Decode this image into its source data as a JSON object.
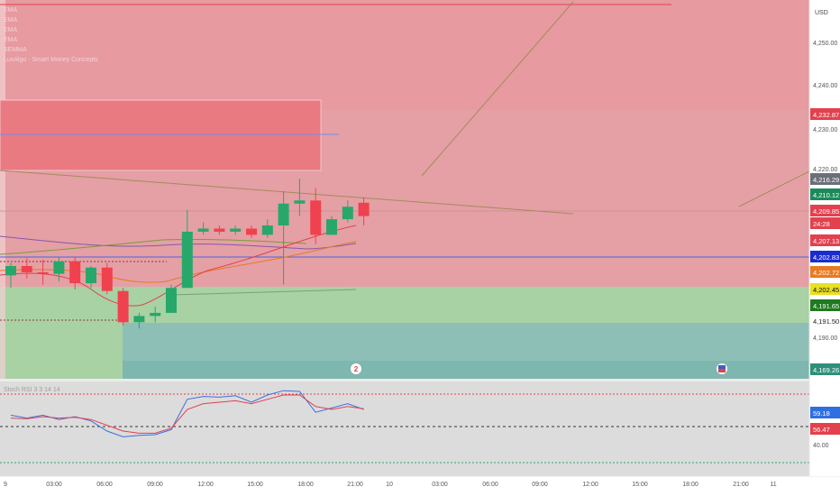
{
  "currency": "USD",
  "legend": [
    "EMA",
    "EMA",
    "EMA",
    "EMA",
    "SEMMA",
    "LuxAlgo - Smart Money Concepts"
  ],
  "price_axis": {
    "ticks": [
      "4,250.00",
      "4,240.00",
      "4,230.00",
      "4,220.00",
      "4,190.00"
    ],
    "badges": [
      {
        "text": "4,232.87",
        "bg": "#e2414e",
        "fg": "#ffffff"
      },
      {
        "text": "4,216.29",
        "bg": "#6b6f78",
        "fg": "#ffffff"
      },
      {
        "text": "4,210.12",
        "bg": "#1c8a5a",
        "fg": "#ffffff"
      },
      {
        "text": "4,209.85",
        "bg": "#e2414e",
        "fg": "#ffffff"
      },
      {
        "text": "24:28",
        "bg": "#e2414e",
        "fg": "#ffffff"
      },
      {
        "text": "4,207.13",
        "bg": "#e2414e",
        "fg": "#ffffff"
      },
      {
        "text": "4,202.83",
        "bg": "#1a2bd0",
        "fg": "#ffffff"
      },
      {
        "text": "4,202.72",
        "bg": "#e87a22",
        "fg": "#ffffff"
      },
      {
        "text": "4,202.45",
        "bg": "#e8e021",
        "fg": "#111111"
      },
      {
        "text": "4,191.65",
        "bg": "#1f7a1f",
        "fg": "#ffffff"
      },
      {
        "text": "4,191.50",
        "bg": "#ffffff",
        "fg": "#222222"
      },
      {
        "text": "4,169.26",
        "bg": "#2f8f7a",
        "fg": "#ffffff"
      }
    ]
  },
  "osc_axis": {
    "badges": [
      {
        "text": "59.18",
        "bg": "#2f6fe0",
        "fg": "#ffffff"
      },
      {
        "text": "56.47",
        "bg": "#e2414e",
        "fg": "#ffffff"
      }
    ],
    "ticks": [
      "40.00"
    ]
  },
  "osc_title": "Stoch RSI 3 3 14 14",
  "time_axis": [
    "9",
    "03:00",
    "06:00",
    "09:00",
    "12:00",
    "15:00",
    "18:00",
    "21:00",
    "10",
    "03:00",
    "06:00",
    "09:00",
    "12:00",
    "15:00",
    "18:00",
    "21:00",
    "11"
  ],
  "colors": {
    "bull": "#27a86a",
    "bear": "#f0414e",
    "supply_zone": "#e4a0a5",
    "demand_zone": "#a8d1a4",
    "discount_zone": "#8dbfb7",
    "ob_box": "#ea7a82",
    "osc_bg": "#dcdcdc",
    "k_line": "#3d6fe0",
    "d_line": "#e2414e"
  },
  "chart_data": {
    "type": "candlestick",
    "series_ohlc": [
      [
        4193.0,
        4197.0,
        4189.0,
        4196.0
      ],
      [
        4196.0,
        4198.5,
        4192.0,
        4194.0
      ],
      [
        4194.0,
        4198.0,
        4190.0,
        4193.5
      ],
      [
        4193.5,
        4199.0,
        4191.0,
        4197.5
      ],
      [
        4197.5,
        4199.0,
        4188.5,
        4190.5
      ],
      [
        4190.5,
        4196.0,
        4189.0,
        4195.5
      ],
      [
        4195.5,
        4197.0,
        4187.0,
        4188.0
      ],
      [
        4188.0,
        4189.0,
        4177.0,
        4178.0
      ],
      [
        4178.0,
        4181.0,
        4176.0,
        4180.0
      ],
      [
        4180.0,
        4183.0,
        4178.0,
        4181.0
      ],
      [
        4181.0,
        4190.0,
        4181.0,
        4189.0
      ],
      [
        4189.0,
        4214.0,
        4189.0,
        4207.0
      ],
      [
        4207.0,
        4210.0,
        4206.0,
        4208.0
      ],
      [
        4208.0,
        4209.0,
        4206.0,
        4207.0
      ],
      [
        4207.0,
        4209.0,
        4206.0,
        4208.0
      ],
      [
        4208.0,
        4209.0,
        4205.0,
        4206.0
      ],
      [
        4206.0,
        4211.0,
        4205.0,
        4209.0
      ],
      [
        4209.0,
        4220.0,
        4190.0,
        4216.0
      ],
      [
        4216.0,
        4224.0,
        4212.0,
        4217.0
      ],
      [
        4217.0,
        4221.0,
        4203.0,
        4206.0
      ],
      [
        4206.0,
        4212.0,
        4206.0,
        4211.0
      ],
      [
        4211.0,
        4217.0,
        4210.0,
        4215.0
      ],
      [
        4216.29,
        4218.0,
        4209.0,
        4212.0
      ]
    ],
    "osc_k": [
      62,
      58,
      62,
      56,
      60,
      54,
      40,
      32,
      34,
      35,
      42,
      84,
      88,
      87,
      89,
      80,
      90,
      96,
      95,
      66,
      72,
      78,
      70
    ],
    "osc_d": [
      58,
      57,
      60,
      58,
      59,
      56,
      48,
      40,
      37,
      37,
      44,
      70,
      78,
      80,
      82,
      78,
      84,
      90,
      90,
      74,
      70,
      74,
      71
    ]
  }
}
